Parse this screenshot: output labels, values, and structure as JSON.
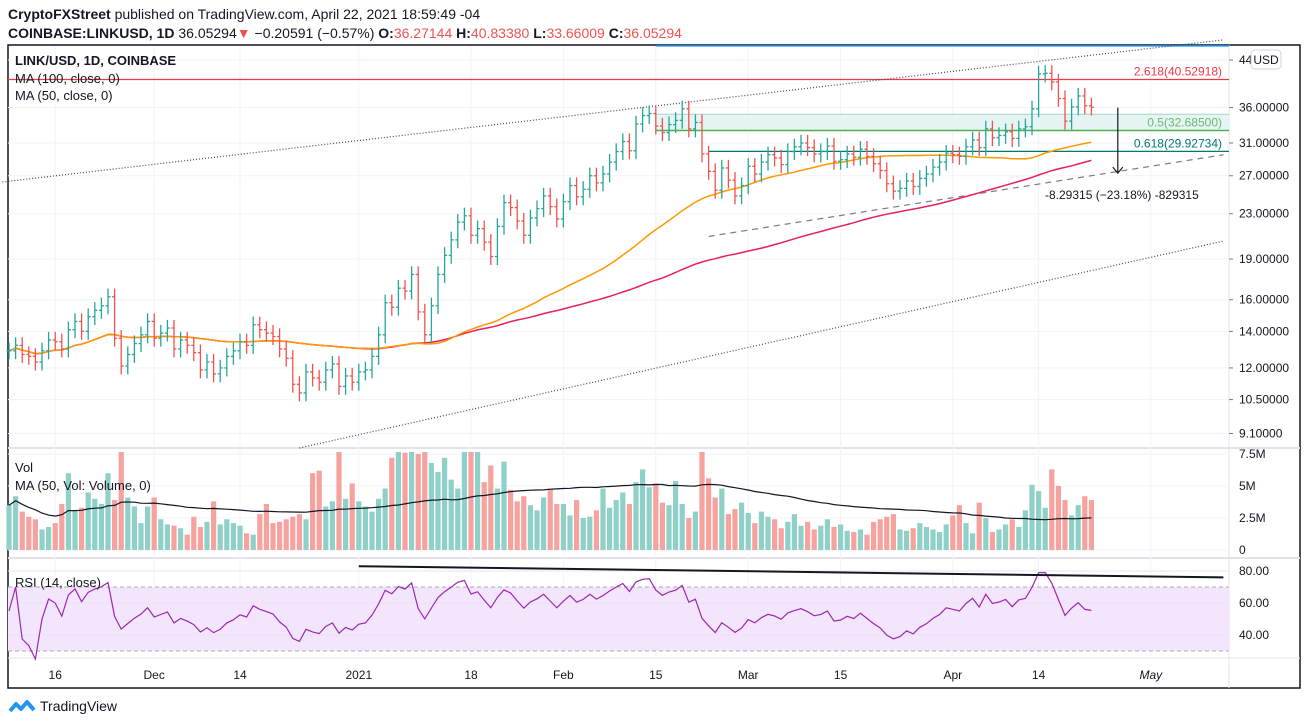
{
  "header": {
    "publisher": "CryptoFXStreet",
    "published_text": "published on TradingView.com, April 22, 2021 18:59:49 -04",
    "symbol": "COINBASE:LINKUSD, 1D",
    "last": "36.05294",
    "change": "−0.20591 (−0.57%)",
    "o_label": "O:",
    "o": "36.27144",
    "h_label": "H:",
    "h": "40.83380",
    "l_label": "L:",
    "l": "33.66009",
    "c_label": "C:",
    "c": "36.05294"
  },
  "legend": {
    "title": "LINK/USD, 1D, COINBASE",
    "ma100": "MA (100, close, 0)",
    "ma50": "MA (50, close, 0)",
    "vol": "Vol",
    "vol_ma": "MA (50, Vol: Volume, 0)",
    "rsi": "RSI (14, close)"
  },
  "footer": {
    "brand": "TradingView"
  },
  "colors": {
    "up": "#26a69a",
    "down": "#ef5350",
    "vol_up": "#8fd1c8",
    "vol_down": "#f6a29f",
    "ma50": "#ff9800",
    "ma100": "#e91e63",
    "rsi": "#9c27b0",
    "rsi_band": "#f3e5fc",
    "fib_red": "#f23645",
    "fib_green": "#4caf50",
    "fib_teal": "#00796b",
    "blue_line": "#2196f3"
  },
  "chart_data": {
    "type": "ohlc",
    "end_date": "2021-04-22",
    "y_scale": "log",
    "ylim": [
      8.6,
      46.7
    ],
    "currency": "USD",
    "y_ticks": [
      "44",
      "36.00000",
      "31.00000",
      "27.00000",
      "23.00000",
      "19.00000",
      "16.00000",
      "14.00000",
      "12.00000",
      "10.50000",
      "9.10000"
    ],
    "x_ticks": [
      {
        "date": "2020-11-16",
        "label": "16"
      },
      {
        "date": "2020-12-01",
        "label": "Dec"
      },
      {
        "date": "2020-12-14",
        "label": "14"
      },
      {
        "date": "2021-01-01",
        "label": "2021"
      },
      {
        "date": "2021-01-18",
        "label": "18"
      },
      {
        "date": "2021-02-01",
        "label": "Feb"
      },
      {
        "date": "2021-02-15",
        "label": "15"
      },
      {
        "date": "2021-03-01",
        "label": "Mar"
      },
      {
        "date": "2021-03-15",
        "label": "15"
      },
      {
        "date": "2021-04-01",
        "label": "Apr"
      },
      {
        "date": "2021-04-14",
        "label": "14"
      },
      {
        "date": "2021-05-01",
        "label": "May"
      }
    ],
    "close": [
      12.9,
      13.2,
      12.7,
      12.6,
      12.3,
      12.9,
      13.5,
      13.4,
      13.0,
      14.1,
      14.6,
      14.0,
      14.9,
      15.3,
      15.6,
      16.2,
      13.6,
      12.1,
      12.7,
      13.3,
      13.8,
      14.6,
      13.6,
      13.9,
      14.2,
      13.0,
      13.5,
      13.2,
      12.8,
      11.9,
      12.3,
      11.7,
      12.0,
      12.6,
      12.9,
      13.4,
      13.2,
      14.4,
      14.1,
      13.9,
      13.7,
      13.0,
      12.5,
      11.2,
      10.8,
      11.8,
      11.5,
      11.3,
      11.9,
      12.2,
      11.1,
      11.6,
      11.3,
      11.8,
      11.9,
      12.6,
      13.8,
      15.8,
      15.5,
      16.8,
      16.6,
      17.8,
      15.2,
      13.8,
      15.6,
      17.8,
      19.3,
      20.6,
      22.2,
      22.8,
      21.0,
      21.6,
      20.4,
      19.2,
      21.8,
      24.1,
      23.6,
      22.3,
      21.0,
      22.6,
      23.5,
      24.8,
      23.7,
      22.5,
      24.2,
      25.9,
      24.7,
      25.5,
      27.0,
      26.2,
      27.2,
      28.6,
      29.9,
      31.2,
      30.0,
      33.6,
      34.8,
      35.1,
      33.3,
      32.4,
      33.5,
      34.1,
      35.8,
      32.9,
      33.8,
      29.6,
      27.5,
      25.4,
      27.9,
      26.5,
      24.8,
      25.9,
      28.1,
      27.2,
      28.6,
      29.5,
      29.1,
      28.3,
      29.9,
      30.5,
      31.0,
      30.4,
      29.6,
      29.9,
      30.6,
      28.7,
      28.9,
      29.6,
      29.2,
      30.2,
      29.3,
      28.4,
      27.6,
      26.1,
      25.3,
      25.6,
      26.4,
      25.8,
      26.7,
      27.2,
      28.0,
      28.6,
      29.7,
      29.5,
      29.3,
      30.5,
      31.4,
      30.4,
      32.9,
      31.7,
      32.0,
      32.5,
      31.6,
      32.9,
      33.2,
      35.8,
      41.5,
      41.6,
      40.1,
      37.4,
      34.0,
      36.1,
      37.8,
      36.27144,
      36.05294
    ],
    "volume_millions": [
      3.5,
      4.2,
      3.0,
      2.6,
      2.4,
      1.6,
      1.8,
      2.1,
      3.6,
      6.0,
      3.1,
      3.3,
      4.5,
      4.0,
      3.6,
      6.0,
      3.9,
      8,
      4.1,
      3.4,
      2.1,
      3.4,
      4.1,
      2.4,
      2.0,
      1.9,
      1.7,
      1.2,
      2.6,
      1.8,
      2.2,
      3.8,
      2.0,
      2.4,
      2.1,
      1.9,
      1.3,
      1.2,
      2.8,
      3.6,
      2.1,
      2.2,
      2.4,
      2.6,
      2.8,
      2.4,
      6.0,
      6.2,
      3.4,
      3.8,
      8,
      4.0,
      5.2,
      3.8,
      3.4,
      3.0,
      4.0,
      4.8,
      7.2,
      8,
      7.6,
      8,
      7.5,
      8,
      6.8,
      6.1,
      7.2,
      5.5,
      4.8,
      8,
      8,
      7.7,
      5.3,
      6.6,
      4.8,
      6.9,
      4.7,
      3.8,
      4.2,
      3.5,
      3.1,
      4.1,
      4.8,
      3.6,
      3.6,
      2.7,
      3.9,
      2.5,
      2.6,
      3.1,
      4.8,
      3.3,
      3.9,
      4.5,
      3.6,
      5.3,
      6.3,
      4.9,
      5.2,
      3.7,
      3.5,
      5.4,
      3.6,
      2.5,
      3.0,
      8,
      5.6,
      4.1,
      4.8,
      2.8,
      3.2,
      3.7,
      2.9,
      2.1,
      3.0,
      2.6,
      2.4,
      1.7,
      2.2,
      2.8,
      1.9,
      2.2,
      1.6,
      1.9,
      2.4,
      1.8,
      2.0,
      1.5,
      1.4,
      1.6,
      1.2,
      2.2,
      2.4,
      2.6,
      2.8,
      1.6,
      1.5,
      1.7,
      2.1,
      1.8,
      1.6,
      1.4,
      2.0,
      2.7,
      3.5,
      2.1,
      1.3,
      3.7,
      2.5,
      1.4,
      1.6,
      2.0,
      2.4,
      1.8,
      3.1,
      5.1,
      4.6,
      3.3,
      6.3,
      5.0,
      3.9,
      2.7,
      3.5,
      4.2,
      3.9
    ],
    "volume_ticks": [
      {
        "v": 7.5,
        "label": "7.5M"
      },
      {
        "v": 5,
        "label": "5M"
      },
      {
        "v": 2.5,
        "label": "2.5M"
      },
      {
        "v": 0,
        "label": "0"
      }
    ],
    "rsi_ticks": [
      {
        "v": 80,
        "label": "80.00"
      },
      {
        "v": 60,
        "label": "60.00"
      },
      {
        "v": 40,
        "label": "40.00"
      }
    ],
    "rsi_band": [
      30,
      70
    ],
    "annotations": {
      "fib_2618": {
        "price": 40.52918,
        "label": "2.618(40.52918)"
      },
      "fib_05": {
        "price": 32.685,
        "label": "0.5(32.68500)",
        "zone_top": 35.0,
        "from": "2021-02-15"
      },
      "fib_0618": {
        "price": 29.92734,
        "label": "0.618(29.92734)",
        "from": "2021-02-23"
      },
      "top_line": {
        "price": 46.7,
        "from": "2021-02-15"
      },
      "upper_channel": [
        {
          "date": "2020-11-08",
          "price": 26.3
        },
        {
          "date": "2021-05-12",
          "price": 47.9
        }
      ],
      "lower_channel": [
        {
          "date": "2020-12-23",
          "price": 8.56
        },
        {
          "date": "2021-05-12",
          "price": 20.5
        }
      ],
      "support_line": [
        {
          "date": "2021-02-23",
          "price": 20.9
        },
        {
          "date": "2021-05-12",
          "price": 29.5
        }
      ],
      "measure": {
        "date": "2021-04-26",
        "from": 36.0,
        "to": 27.3,
        "label": "-8.29315 (−23.18%) -829315"
      },
      "rsi_trendline": [
        {
          "date": "2021-01-01",
          "rsi": 83
        },
        {
          "date": "2021-05-12",
          "rsi": 76
        }
      ]
    }
  }
}
